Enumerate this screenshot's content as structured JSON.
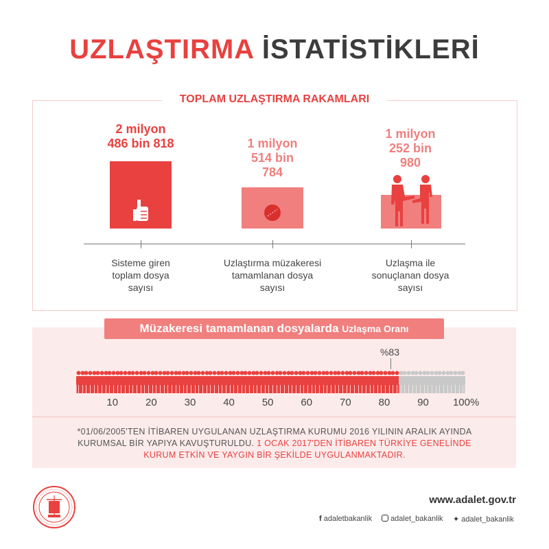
{
  "title": {
    "part1": "UZLAŞTIRMA",
    "part2": "İSTATİSTİKLERİ"
  },
  "section1": {
    "heading": "TOPLAM UZLAŞTIRMA RAKAMLARI",
    "stats": [
      {
        "lines": [
          "2 milyon",
          "486 bin 818"
        ],
        "value": 2486818,
        "desc": [
          "Sisteme giren",
          "toplam dosya",
          "sayısı"
        ],
        "icon": "thumbs-up-icon"
      },
      {
        "lines": [
          "1 milyon",
          "514 bin",
          "784"
        ],
        "value": 1514784,
        "desc": [
          "Uzlaştırma müzakeresi",
          "tamamlanan dosya",
          "sayısı"
        ],
        "icon": "stamp-seal-icon"
      },
      {
        "lines": [
          "1 milyon",
          "252 bin",
          "980"
        ],
        "value": 1252980,
        "desc": [
          "Uzlaşma ile",
          "sonuçlanan dosya",
          "sayısı"
        ],
        "icon": "handshake-icon"
      }
    ]
  },
  "section2": {
    "heading_main": "Müzakeresi tamamlanan dosyalarda",
    "heading_small": "Uzlaşma Oranı",
    "percent_label": "%83",
    "percent": 83,
    "scale": [
      "10",
      "20",
      "30",
      "40",
      "50",
      "60",
      "70",
      "80",
      "90",
      "100%"
    ]
  },
  "footnote": {
    "line1": "*01/06/2005'TEN İTİBAREN UYGULANAN UZLAŞTIRMA KURUMU 2016 YILININ ARALIK AYINDA",
    "line2_normal": "KURUMSAL BİR YAPIYA KAVUŞTURULDU.",
    "line2_red": " 1 OCAK 2017'DEN İTİBAREN TÜRKİYE GENELİNDE",
    "line3_red": "KURUM ETKİN VE YAYGIN BİR ŞEKİLDE UYGULANMAKTADIR."
  },
  "footer": {
    "website": "www.adalet.gov.tr",
    "facebook": "adaletbakanlik",
    "instagram": "adalet_bakanlik",
    "twitter": "adalet_bakanlik",
    "logo": "ministry-seal-icon"
  },
  "colors": {
    "red": "#e8413f",
    "pink": "#f07f7e",
    "light_pink": "#fcebeb",
    "gray": "#c8c8c8"
  }
}
